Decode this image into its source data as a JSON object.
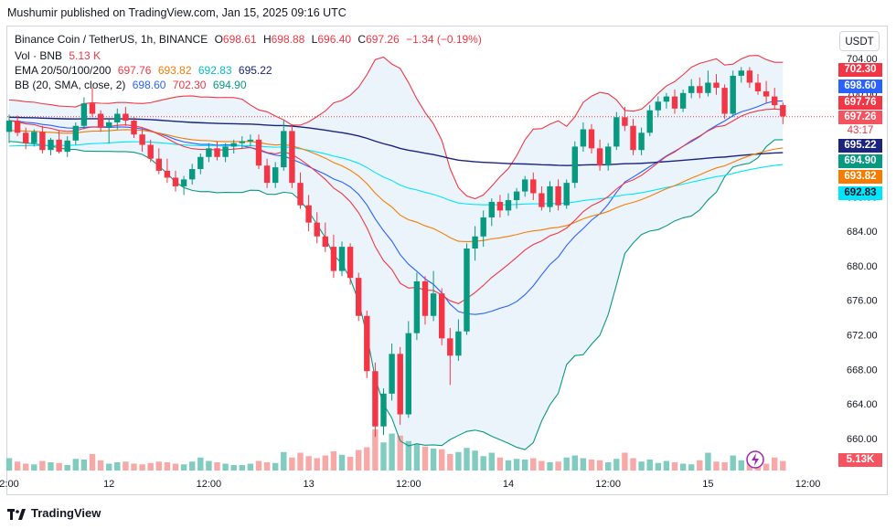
{
  "header": {
    "published": "Mushumir published on TradingView.com, Jan 15, 2025 09:16 UTC"
  },
  "legend": {
    "symbol": "Binance Coin / TetherUS, 1h, BINANCE",
    "o_label": "O",
    "o_value": "698.61",
    "h_label": "H",
    "h_value": "698.88",
    "l_label": "L",
    "l_value": "696.40",
    "c_label": "C",
    "c_value": "697.26",
    "change": "−1.34 (−0.19%)",
    "vol_label": "Vol · BNB",
    "vol_value": "5.13 K",
    "ema_label": "EMA 20/50/100/200",
    "ema20": "697.76",
    "ema50": "693.82",
    "ema100": "692.83",
    "ema200": "695.22",
    "bb_label": "BB (20, SMA, close, 2)",
    "bb_basis": "698.60",
    "bb_upper": "702.30",
    "bb_lower": "694.90"
  },
  "currency_button": "USDT",
  "price_tags": [
    {
      "text": "702.30",
      "color": "#f23645",
      "value": 702.3
    },
    {
      "text": "698.60",
      "color": "#2962ff",
      "value": 698.6
    },
    {
      "text": "697.76",
      "color": "#f23645",
      "value": 697.76
    },
    {
      "text": "697.26",
      "color": "#f7525f",
      "value": 697.26
    },
    {
      "text": "43:17",
      "color": "#f7525f",
      "value": 696.2
    },
    {
      "text": "695.22",
      "color": "#1a237e",
      "value": 695.22
    },
    {
      "text": "694.90",
      "color": "#089981",
      "value": 694.9
    },
    {
      "text": "693.82",
      "color": "#f57c00",
      "value": 693.82
    },
    {
      "text": "692.83",
      "color": "#00e5ff",
      "value": 692.83
    }
  ],
  "volume_tag": {
    "text": "5.13K",
    "color": "#f7525f"
  },
  "footer": {
    "brand": "TradingView"
  },
  "colors": {
    "up": "#089981",
    "down": "#f23645",
    "ema20": "#f23645",
    "ema50": "#f57c00",
    "ema100": "#00e5ff",
    "ema200": "#1a237e",
    "bb_basis": "#2962ff",
    "bb_upper": "#f23645",
    "bb_lower": "#089981",
    "bb_fill": "#e3effa"
  },
  "chart_data": {
    "type": "candlestick",
    "y_ticks": [
      704,
      700,
      696,
      692,
      688,
      684,
      680,
      676,
      672,
      668,
      664,
      660
    ],
    "ylim": [
      656.5,
      705.5
    ],
    "x_ticks": [
      {
        "label": "2:00",
        "index": 0
      },
      {
        "label": "12",
        "index": 12
      },
      {
        "label": "12:00",
        "index": 24
      },
      {
        "label": "13",
        "index": 36
      },
      {
        "label": "12:00",
        "index": 48
      },
      {
        "label": "14",
        "index": 60
      },
      {
        "label": "12:00",
        "index": 72
      },
      {
        "label": "15",
        "index": 84
      },
      {
        "label": "12:00",
        "index": 96
      }
    ],
    "candles": [
      {
        "o": 695.5,
        "h": 697.5,
        "l": 694.2,
        "c": 696.8,
        "v": 1.8
      },
      {
        "o": 696.8,
        "h": 697.4,
        "l": 695.0,
        "c": 695.4,
        "v": 1.3
      },
      {
        "o": 695.4,
        "h": 696.0,
        "l": 693.5,
        "c": 694.2,
        "v": 1.0
      },
      {
        "o": 694.2,
        "h": 695.8,
        "l": 693.8,
        "c": 695.5,
        "v": 0.9
      },
      {
        "o": 695.5,
        "h": 696.2,
        "l": 693.0,
        "c": 693.4,
        "v": 1.4
      },
      {
        "o": 693.4,
        "h": 694.8,
        "l": 692.8,
        "c": 694.6,
        "v": 1.2
      },
      {
        "o": 694.6,
        "h": 695.6,
        "l": 693.0,
        "c": 693.2,
        "v": 1.1
      },
      {
        "o": 693.2,
        "h": 695.0,
        "l": 692.6,
        "c": 694.5,
        "v": 0.8
      },
      {
        "o": 694.5,
        "h": 696.6,
        "l": 694.0,
        "c": 696.2,
        "v": 1.7
      },
      {
        "o": 696.2,
        "h": 699.5,
        "l": 695.8,
        "c": 698.8,
        "v": 1.6
      },
      {
        "o": 698.8,
        "h": 700.6,
        "l": 697.2,
        "c": 697.6,
        "v": 2.4
      },
      {
        "o": 697.6,
        "h": 698.0,
        "l": 695.5,
        "c": 696.0,
        "v": 1.5
      },
      {
        "o": 696.0,
        "h": 697.0,
        "l": 694.2,
        "c": 696.6,
        "v": 1.0
      },
      {
        "o": 696.6,
        "h": 698.2,
        "l": 695.8,
        "c": 697.6,
        "v": 1.2
      },
      {
        "o": 697.6,
        "h": 698.4,
        "l": 696.2,
        "c": 696.8,
        "v": 1.3
      },
      {
        "o": 696.8,
        "h": 697.2,
        "l": 694.8,
        "c": 695.2,
        "v": 1.0
      },
      {
        "o": 695.2,
        "h": 696.0,
        "l": 693.2,
        "c": 694.0,
        "v": 0.9
      },
      {
        "o": 694.0,
        "h": 694.6,
        "l": 692.0,
        "c": 692.4,
        "v": 1.1
      },
      {
        "o": 692.4,
        "h": 693.6,
        "l": 690.6,
        "c": 691.0,
        "v": 1.3
      },
      {
        "o": 691.0,
        "h": 692.4,
        "l": 689.6,
        "c": 690.2,
        "v": 1.2
      },
      {
        "o": 690.2,
        "h": 691.0,
        "l": 688.6,
        "c": 689.2,
        "v": 1.0
      },
      {
        "o": 689.2,
        "h": 690.4,
        "l": 688.2,
        "c": 690.0,
        "v": 0.9
      },
      {
        "o": 690.0,
        "h": 691.8,
        "l": 689.4,
        "c": 691.2,
        "v": 1.3
      },
      {
        "o": 691.2,
        "h": 693.0,
        "l": 690.6,
        "c": 692.6,
        "v": 1.9
      },
      {
        "o": 692.6,
        "h": 694.2,
        "l": 692.0,
        "c": 693.6,
        "v": 1.4
      },
      {
        "o": 693.6,
        "h": 694.4,
        "l": 692.2,
        "c": 692.6,
        "v": 1.2
      },
      {
        "o": 692.6,
        "h": 694.2,
        "l": 692.0,
        "c": 693.8,
        "v": 1.0
      },
      {
        "o": 693.8,
        "h": 694.6,
        "l": 693.0,
        "c": 694.2,
        "v": 0.8
      },
      {
        "o": 694.2,
        "h": 695.0,
        "l": 693.6,
        "c": 694.4,
        "v": 0.8
      },
      {
        "o": 694.4,
        "h": 695.2,
        "l": 693.8,
        "c": 694.6,
        "v": 1.0
      },
      {
        "o": 694.6,
        "h": 695.2,
        "l": 691.2,
        "c": 691.6,
        "v": 1.4
      },
      {
        "o": 691.6,
        "h": 692.4,
        "l": 689.0,
        "c": 689.6,
        "v": 1.2
      },
      {
        "o": 689.6,
        "h": 692.0,
        "l": 689.0,
        "c": 691.4,
        "v": 1.1
      },
      {
        "o": 691.4,
        "h": 696.8,
        "l": 691.0,
        "c": 695.6,
        "v": 2.7
      },
      {
        "o": 695.6,
        "h": 696.4,
        "l": 689.0,
        "c": 689.6,
        "v": 1.9
      },
      {
        "o": 689.6,
        "h": 690.8,
        "l": 686.6,
        "c": 687.0,
        "v": 2.6
      },
      {
        "o": 687.0,
        "h": 688.2,
        "l": 684.0,
        "c": 685.0,
        "v": 2.1
      },
      {
        "o": 685.0,
        "h": 686.2,
        "l": 682.6,
        "c": 683.4,
        "v": 1.8
      },
      {
        "o": 683.4,
        "h": 685.0,
        "l": 681.6,
        "c": 682.2,
        "v": 2.2
      },
      {
        "o": 682.2,
        "h": 683.6,
        "l": 678.6,
        "c": 679.4,
        "v": 2.8
      },
      {
        "o": 679.4,
        "h": 682.8,
        "l": 678.8,
        "c": 682.2,
        "v": 2.3
      },
      {
        "o": 682.2,
        "h": 682.6,
        "l": 677.8,
        "c": 678.6,
        "v": 2.0
      },
      {
        "o": 678.6,
        "h": 679.2,
        "l": 673.6,
        "c": 674.2,
        "v": 3.0
      },
      {
        "o": 674.2,
        "h": 674.8,
        "l": 667.0,
        "c": 667.8,
        "v": 3.4
      },
      {
        "o": 667.8,
        "h": 668.8,
        "l": 660.2,
        "c": 661.4,
        "v": 6.0
      },
      {
        "o": 661.4,
        "h": 665.8,
        "l": 660.4,
        "c": 665.2,
        "v": 4.1
      },
      {
        "o": 665.2,
        "h": 671.0,
        "l": 664.4,
        "c": 669.8,
        "v": 5.4
      },
      {
        "o": 669.8,
        "h": 670.6,
        "l": 661.6,
        "c": 662.8,
        "v": 5.1
      },
      {
        "o": 662.8,
        "h": 673.6,
        "l": 662.4,
        "c": 672.2,
        "v": 4.3
      },
      {
        "o": 672.2,
        "h": 679.2,
        "l": 671.4,
        "c": 678.2,
        "v": 3.8
      },
      {
        "o": 678.2,
        "h": 678.8,
        "l": 673.2,
        "c": 674.2,
        "v": 3.5
      },
      {
        "o": 674.2,
        "h": 679.4,
        "l": 673.6,
        "c": 676.8,
        "v": 3.2
      },
      {
        "o": 676.8,
        "h": 677.4,
        "l": 670.8,
        "c": 671.6,
        "v": 3.1
      },
      {
        "o": 671.6,
        "h": 672.8,
        "l": 666.2,
        "c": 669.6,
        "v": 2.4
      },
      {
        "o": 669.6,
        "h": 673.8,
        "l": 669.0,
        "c": 672.4,
        "v": 2.7
      },
      {
        "o": 672.4,
        "h": 682.6,
        "l": 672.0,
        "c": 682.0,
        "v": 3.3
      },
      {
        "o": 682.0,
        "h": 684.6,
        "l": 680.6,
        "c": 683.4,
        "v": 2.9
      },
      {
        "o": 683.4,
        "h": 686.4,
        "l": 682.2,
        "c": 685.6,
        "v": 2.1
      },
      {
        "o": 685.6,
        "h": 687.8,
        "l": 684.6,
        "c": 687.4,
        "v": 2.6
      },
      {
        "o": 687.4,
        "h": 688.2,
        "l": 685.6,
        "c": 686.4,
        "v": 1.9
      },
      {
        "o": 686.4,
        "h": 688.4,
        "l": 685.8,
        "c": 687.6,
        "v": 1.5
      },
      {
        "o": 687.6,
        "h": 689.0,
        "l": 686.6,
        "c": 688.6,
        "v": 1.7
      },
      {
        "o": 688.6,
        "h": 690.4,
        "l": 688.0,
        "c": 690.0,
        "v": 1.6
      },
      {
        "o": 690.0,
        "h": 690.8,
        "l": 687.6,
        "c": 688.4,
        "v": 1.8
      },
      {
        "o": 688.4,
        "h": 689.2,
        "l": 686.4,
        "c": 686.8,
        "v": 1.4
      },
      {
        "o": 686.8,
        "h": 689.8,
        "l": 686.2,
        "c": 689.2,
        "v": 1.2
      },
      {
        "o": 689.2,
        "h": 690.0,
        "l": 686.4,
        "c": 687.0,
        "v": 1.3
      },
      {
        "o": 687.0,
        "h": 690.0,
        "l": 686.6,
        "c": 689.6,
        "v": 1.9
      },
      {
        "o": 689.6,
        "h": 694.4,
        "l": 689.0,
        "c": 693.8,
        "v": 2.2
      },
      {
        "o": 693.8,
        "h": 696.6,
        "l": 693.2,
        "c": 695.8,
        "v": 1.8
      },
      {
        "o": 695.8,
        "h": 696.4,
        "l": 693.0,
        "c": 693.6,
        "v": 1.6
      },
      {
        "o": 693.6,
        "h": 694.6,
        "l": 691.0,
        "c": 691.6,
        "v": 1.5
      },
      {
        "o": 691.6,
        "h": 694.2,
        "l": 691.0,
        "c": 693.8,
        "v": 1.2
      },
      {
        "o": 693.8,
        "h": 697.8,
        "l": 693.4,
        "c": 697.2,
        "v": 1.7
      },
      {
        "o": 697.2,
        "h": 698.4,
        "l": 695.6,
        "c": 696.2,
        "v": 2.6
      },
      {
        "o": 696.2,
        "h": 697.0,
        "l": 692.8,
        "c": 693.4,
        "v": 1.8
      },
      {
        "o": 693.4,
        "h": 696.0,
        "l": 692.8,
        "c": 695.4,
        "v": 1.3
      },
      {
        "o": 695.4,
        "h": 698.6,
        "l": 695.0,
        "c": 698.0,
        "v": 1.6
      },
      {
        "o": 698.0,
        "h": 699.6,
        "l": 697.2,
        "c": 699.0,
        "v": 1.1
      },
      {
        "o": 699.0,
        "h": 700.0,
        "l": 698.2,
        "c": 699.6,
        "v": 1.4
      },
      {
        "o": 699.6,
        "h": 700.4,
        "l": 697.6,
        "c": 698.2,
        "v": 1.2
      },
      {
        "o": 698.2,
        "h": 700.4,
        "l": 697.8,
        "c": 700.0,
        "v": 1.0
      },
      {
        "o": 700.0,
        "h": 701.6,
        "l": 699.4,
        "c": 700.8,
        "v": 0.9
      },
      {
        "o": 700.8,
        "h": 701.8,
        "l": 699.4,
        "c": 700.0,
        "v": 1.5
      },
      {
        "o": 700.0,
        "h": 702.6,
        "l": 699.6,
        "c": 701.2,
        "v": 2.6
      },
      {
        "o": 701.2,
        "h": 702.2,
        "l": 699.8,
        "c": 700.6,
        "v": 1.3
      },
      {
        "o": 700.6,
        "h": 701.0,
        "l": 697.0,
        "c": 697.6,
        "v": 1.2
      },
      {
        "o": 697.6,
        "h": 702.6,
        "l": 697.2,
        "c": 702.0,
        "v": 2.2
      },
      {
        "o": 702.0,
        "h": 703.0,
        "l": 701.2,
        "c": 702.6,
        "v": 1.5
      },
      {
        "o": 702.6,
        "h": 703.0,
        "l": 700.6,
        "c": 701.2,
        "v": 1.3
      },
      {
        "o": 701.2,
        "h": 702.2,
        "l": 699.8,
        "c": 700.2,
        "v": 1.1
      },
      {
        "o": 700.2,
        "h": 701.4,
        "l": 698.8,
        "c": 699.6,
        "v": 1.0
      },
      {
        "o": 699.6,
        "h": 700.6,
        "l": 698.2,
        "c": 698.6,
        "v": 1.9
      },
      {
        "o": 698.6,
        "h": 698.9,
        "l": 696.4,
        "c": 697.3,
        "v": 1.4
      }
    ]
  }
}
